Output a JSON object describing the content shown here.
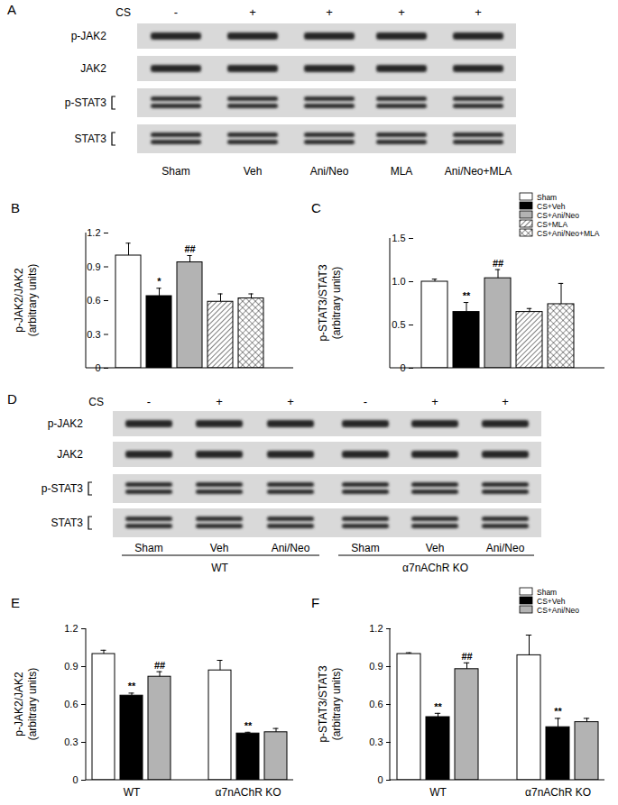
{
  "chart_data": [
    {
      "type": "bar",
      "panel": "B",
      "categories": [
        null
      ],
      "tick_labels": "y",
      "ylabel": [
        "p-JAK2/JAK2",
        "(arbitrary units)"
      ],
      "ylim": [
        0,
        1.2
      ],
      "yticks": [
        0,
        0.3,
        0.6,
        0.9,
        1.2
      ],
      "series": [
        {
          "name": "Sham",
          "color": "#ffffff",
          "values": [
            1.0
          ],
          "errors": [
            0.11
          ],
          "annotations": [
            null
          ]
        },
        {
          "name": "CS+Veh",
          "color": "#000000",
          "values": [
            0.64
          ],
          "errors": [
            0.07
          ],
          "annotations": [
            "*"
          ]
        },
        {
          "name": "CS+Ani/Neo",
          "color": "#b3b3b3",
          "values": [
            0.94
          ],
          "errors": [
            0.06
          ],
          "annotations": [
            "##"
          ]
        },
        {
          "name": "CS+MLA",
          "color": "#ffffff",
          "values": [
            0.59
          ],
          "errors": [
            0.07
          ],
          "annotations": [
            null
          ]
        },
        {
          "name": "CS+Ani/Neo+MLA",
          "color": "#ffffff",
          "values": [
            0.62
          ],
          "errors": [
            0.04
          ],
          "annotations": [
            null
          ]
        }
      ]
    },
    {
      "type": "bar",
      "panel": "C",
      "categories": [
        null
      ],
      "tick_labels": "y",
      "legend": "upper right",
      "ylabel": [
        "p-STAT3/STAT3",
        "(arbitrary units)"
      ],
      "ylim": [
        0,
        1.5
      ],
      "yticks": [
        0,
        0.5,
        {
          "value": 1,
          "label": "1.0"
        },
        1.5
      ],
      "series": [
        {
          "name": "Sham",
          "color": "#ffffff",
          "values": [
            1.0
          ],
          "errors": [
            0.03
          ],
          "annotations": [
            null
          ]
        },
        {
          "name": "CS+Veh",
          "color": "#000000",
          "values": [
            0.65
          ],
          "errors": [
            0.11
          ],
          "annotations": [
            "**"
          ]
        },
        {
          "name": "CS+Ani/Neo",
          "color": "#b3b3b3",
          "values": [
            1.04
          ],
          "errors": [
            0.1
          ],
          "annotations": [
            "##"
          ]
        },
        {
          "name": "CS+MLA",
          "color": "#ffffff",
          "values": [
            0.65
          ],
          "errors": [
            0.04
          ],
          "annotations": [
            null
          ]
        },
        {
          "name": "CS+Ani/Neo+MLA",
          "color": "#ffffff",
          "values": [
            0.74
          ],
          "errors": [
            0.24
          ],
          "annotations": [
            null
          ]
        }
      ]
    },
    {
      "type": "bar",
      "panel": "E",
      "categories": [
        "WT",
        "α7nAChR KO"
      ],
      "ylabel": [
        "p-JAK2/JAK2",
        "(arbitrary units)"
      ],
      "ylim": [
        0,
        1.2
      ],
      "yticks": [
        0,
        0.3,
        0.6,
        0.9,
        1.2
      ],
      "series": [
        {
          "name": "Sham",
          "color": "#ffffff",
          "values": [
            1.0,
            0.87
          ],
          "errors": [
            0.03,
            0.08
          ],
          "annotations": [
            null,
            null
          ]
        },
        {
          "name": "CS+Veh",
          "color": "#000000",
          "values": [
            0.67,
            0.37
          ],
          "errors": [
            0.02,
            0.01
          ],
          "annotations": [
            "**",
            "**"
          ]
        },
        {
          "name": "CS+Ani/Neo",
          "color": "#b3b3b3",
          "values": [
            0.82,
            0.38
          ],
          "errors": [
            0.04,
            0.03
          ],
          "annotations": [
            "##",
            null
          ]
        }
      ]
    },
    {
      "type": "bar",
      "panel": "F",
      "categories": [
        "WT",
        "α7nAChR KO"
      ],
      "legend": "upper right",
      "ylabel": [
        "p-STAT3/STAT3",
        "(arbitrary units)"
      ],
      "ylim": [
        0,
        1.2
      ],
      "yticks": [
        0,
        0.3,
        0.6,
        0.9,
        1.2
      ],
      "series": [
        {
          "name": "Sham",
          "color": "#ffffff",
          "values": [
            1.0,
            0.99
          ],
          "errors": [
            0.01,
            0.16
          ],
          "annotations": [
            null,
            null
          ]
        },
        {
          "name": "CS+Veh",
          "color": "#000000",
          "values": [
            0.5,
            0.42
          ],
          "errors": [
            0.03,
            0.07
          ],
          "annotations": [
            "**",
            "**"
          ]
        },
        {
          "name": "CS+Ani/Neo",
          "color": "#b3b3b3",
          "values": [
            0.88,
            0.46
          ],
          "errors": [
            0.05,
            0.03
          ],
          "annotations": [
            "##",
            null
          ]
        }
      ]
    }
  ],
  "blots": [
    {
      "panel": "A",
      "treatment_label": "CS",
      "treatment": [
        "-",
        "+",
        "+",
        "+",
        "+"
      ],
      "rows": [
        "p-JAK2",
        "JAK2",
        "p-STAT3",
        "STAT3"
      ],
      "lanes": [
        "Sham",
        "Veh",
        "Ani/Neo",
        "MLA",
        "Ani/Neo+MLA"
      ]
    },
    {
      "panel": "D",
      "treatment_label": "CS",
      "treatment": [
        "-",
        "+",
        "+",
        "-",
        "+",
        "+"
      ],
      "rows": [
        "p-JAK2",
        "JAK2",
        "p-STAT3",
        "STAT3"
      ],
      "lanes": [
        "Sham",
        "Veh",
        "Ani/Neo",
        "Sham",
        "Veh",
        "Ani/Neo"
      ],
      "groups": [
        {
          "label": "WT",
          "lanes": 3
        },
        {
          "label": "α7nAChR KO",
          "lanes": 3
        }
      ]
    }
  ]
}
